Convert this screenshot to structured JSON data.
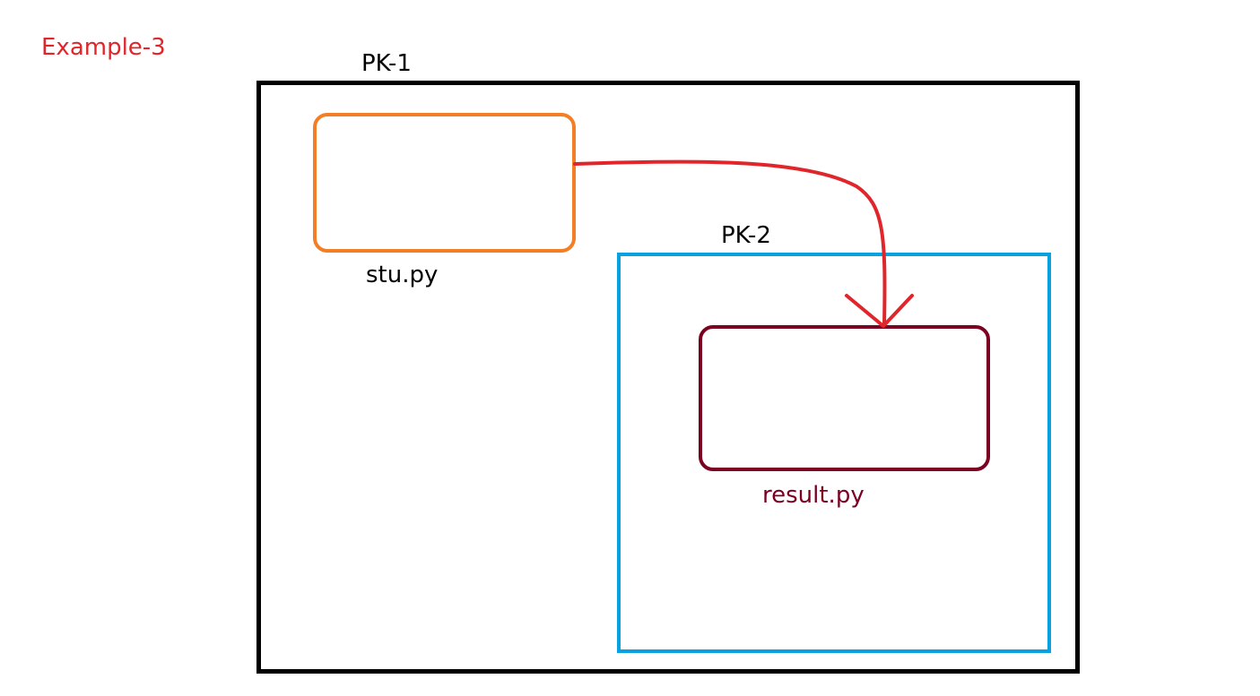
{
  "title": {
    "text": "Example-3",
    "color": "#e0262b"
  },
  "packages": [
    {
      "id": "pk1",
      "label": "PK-1",
      "border_color": "#000000",
      "label_color": "#000000"
    },
    {
      "id": "pk2",
      "label": "PK-2",
      "border_color": "#0aa1e0",
      "label_color": "#000000"
    }
  ],
  "modules": [
    {
      "id": "stu",
      "label": "stu.py",
      "border_color": "#f47e25",
      "label_color": "#000000",
      "package": "PK-1"
    },
    {
      "id": "result",
      "label": "result.py",
      "border_color": "#7b0022",
      "label_color": "#7b0022",
      "package": "PK-2"
    }
  ],
  "arrow": {
    "from": "stu.py",
    "to": "result.py",
    "color": "#e0262b"
  }
}
